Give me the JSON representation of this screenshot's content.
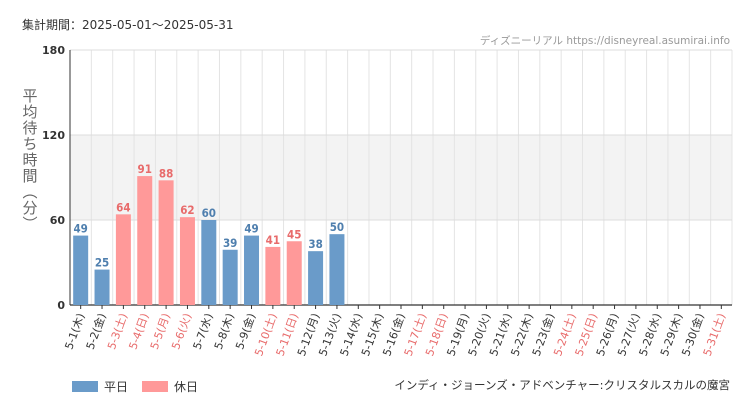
{
  "header": {
    "period": "集計期間：2025-05-01〜2025-05-31",
    "credit": "ディズニーリアル https://disneyreal.asumirai.info"
  },
  "footer": {
    "attraction": "インディ・ジョーンズ・アドベンチャー:クリスタルスカルの魔宮"
  },
  "legend": {
    "weekday": "平日",
    "holiday": "休日"
  },
  "colors": {
    "weekday": "#6a9bc9",
    "holiday": "#ff9999",
    "weekday_text": "#4f7fae",
    "holiday_text": "#e86b6b",
    "band": "#f3f3f3",
    "grid": "#e4e4e4"
  },
  "chart_data": {
    "type": "bar",
    "ylabel": "平均待ち時間（分）",
    "ylim": [
      0,
      180
    ],
    "yticks": [
      0,
      60,
      120,
      180
    ],
    "shaded_band": [
      60,
      120
    ],
    "categories": [
      "5-1(木)",
      "5-2(金)",
      "5-3(土)",
      "5-4(日)",
      "5-5(月)",
      "5-6(火)",
      "5-7(水)",
      "5-8(木)",
      "5-9(金)",
      "5-10(土)",
      "5-11(日)",
      "5-12(月)",
      "5-13(火)",
      "5-14(水)",
      "5-15(木)",
      "5-16(金)",
      "5-17(土)",
      "5-18(日)",
      "5-19(月)",
      "5-20(火)",
      "5-21(水)",
      "5-22(木)",
      "5-23(金)",
      "5-24(土)",
      "5-25(日)",
      "5-26(月)",
      "5-27(火)",
      "5-28(水)",
      "5-29(木)",
      "5-30(金)",
      "5-31(土)"
    ],
    "values": [
      49,
      25,
      64,
      91,
      88,
      62,
      60,
      39,
      49,
      41,
      45,
      38,
      50,
      null,
      null,
      null,
      null,
      null,
      null,
      null,
      null,
      null,
      null,
      null,
      null,
      null,
      null,
      null,
      null,
      null,
      null
    ],
    "day_types": [
      "weekday",
      "weekday",
      "holiday",
      "holiday",
      "holiday",
      "holiday",
      "weekday",
      "weekday",
      "weekday",
      "holiday",
      "holiday",
      "weekday",
      "weekday",
      "weekday",
      "weekday",
      "weekday",
      "holiday",
      "holiday",
      "weekday",
      "weekday",
      "weekday",
      "weekday",
      "weekday",
      "holiday",
      "holiday",
      "weekday",
      "weekday",
      "weekday",
      "weekday",
      "weekday",
      "holiday"
    ]
  }
}
